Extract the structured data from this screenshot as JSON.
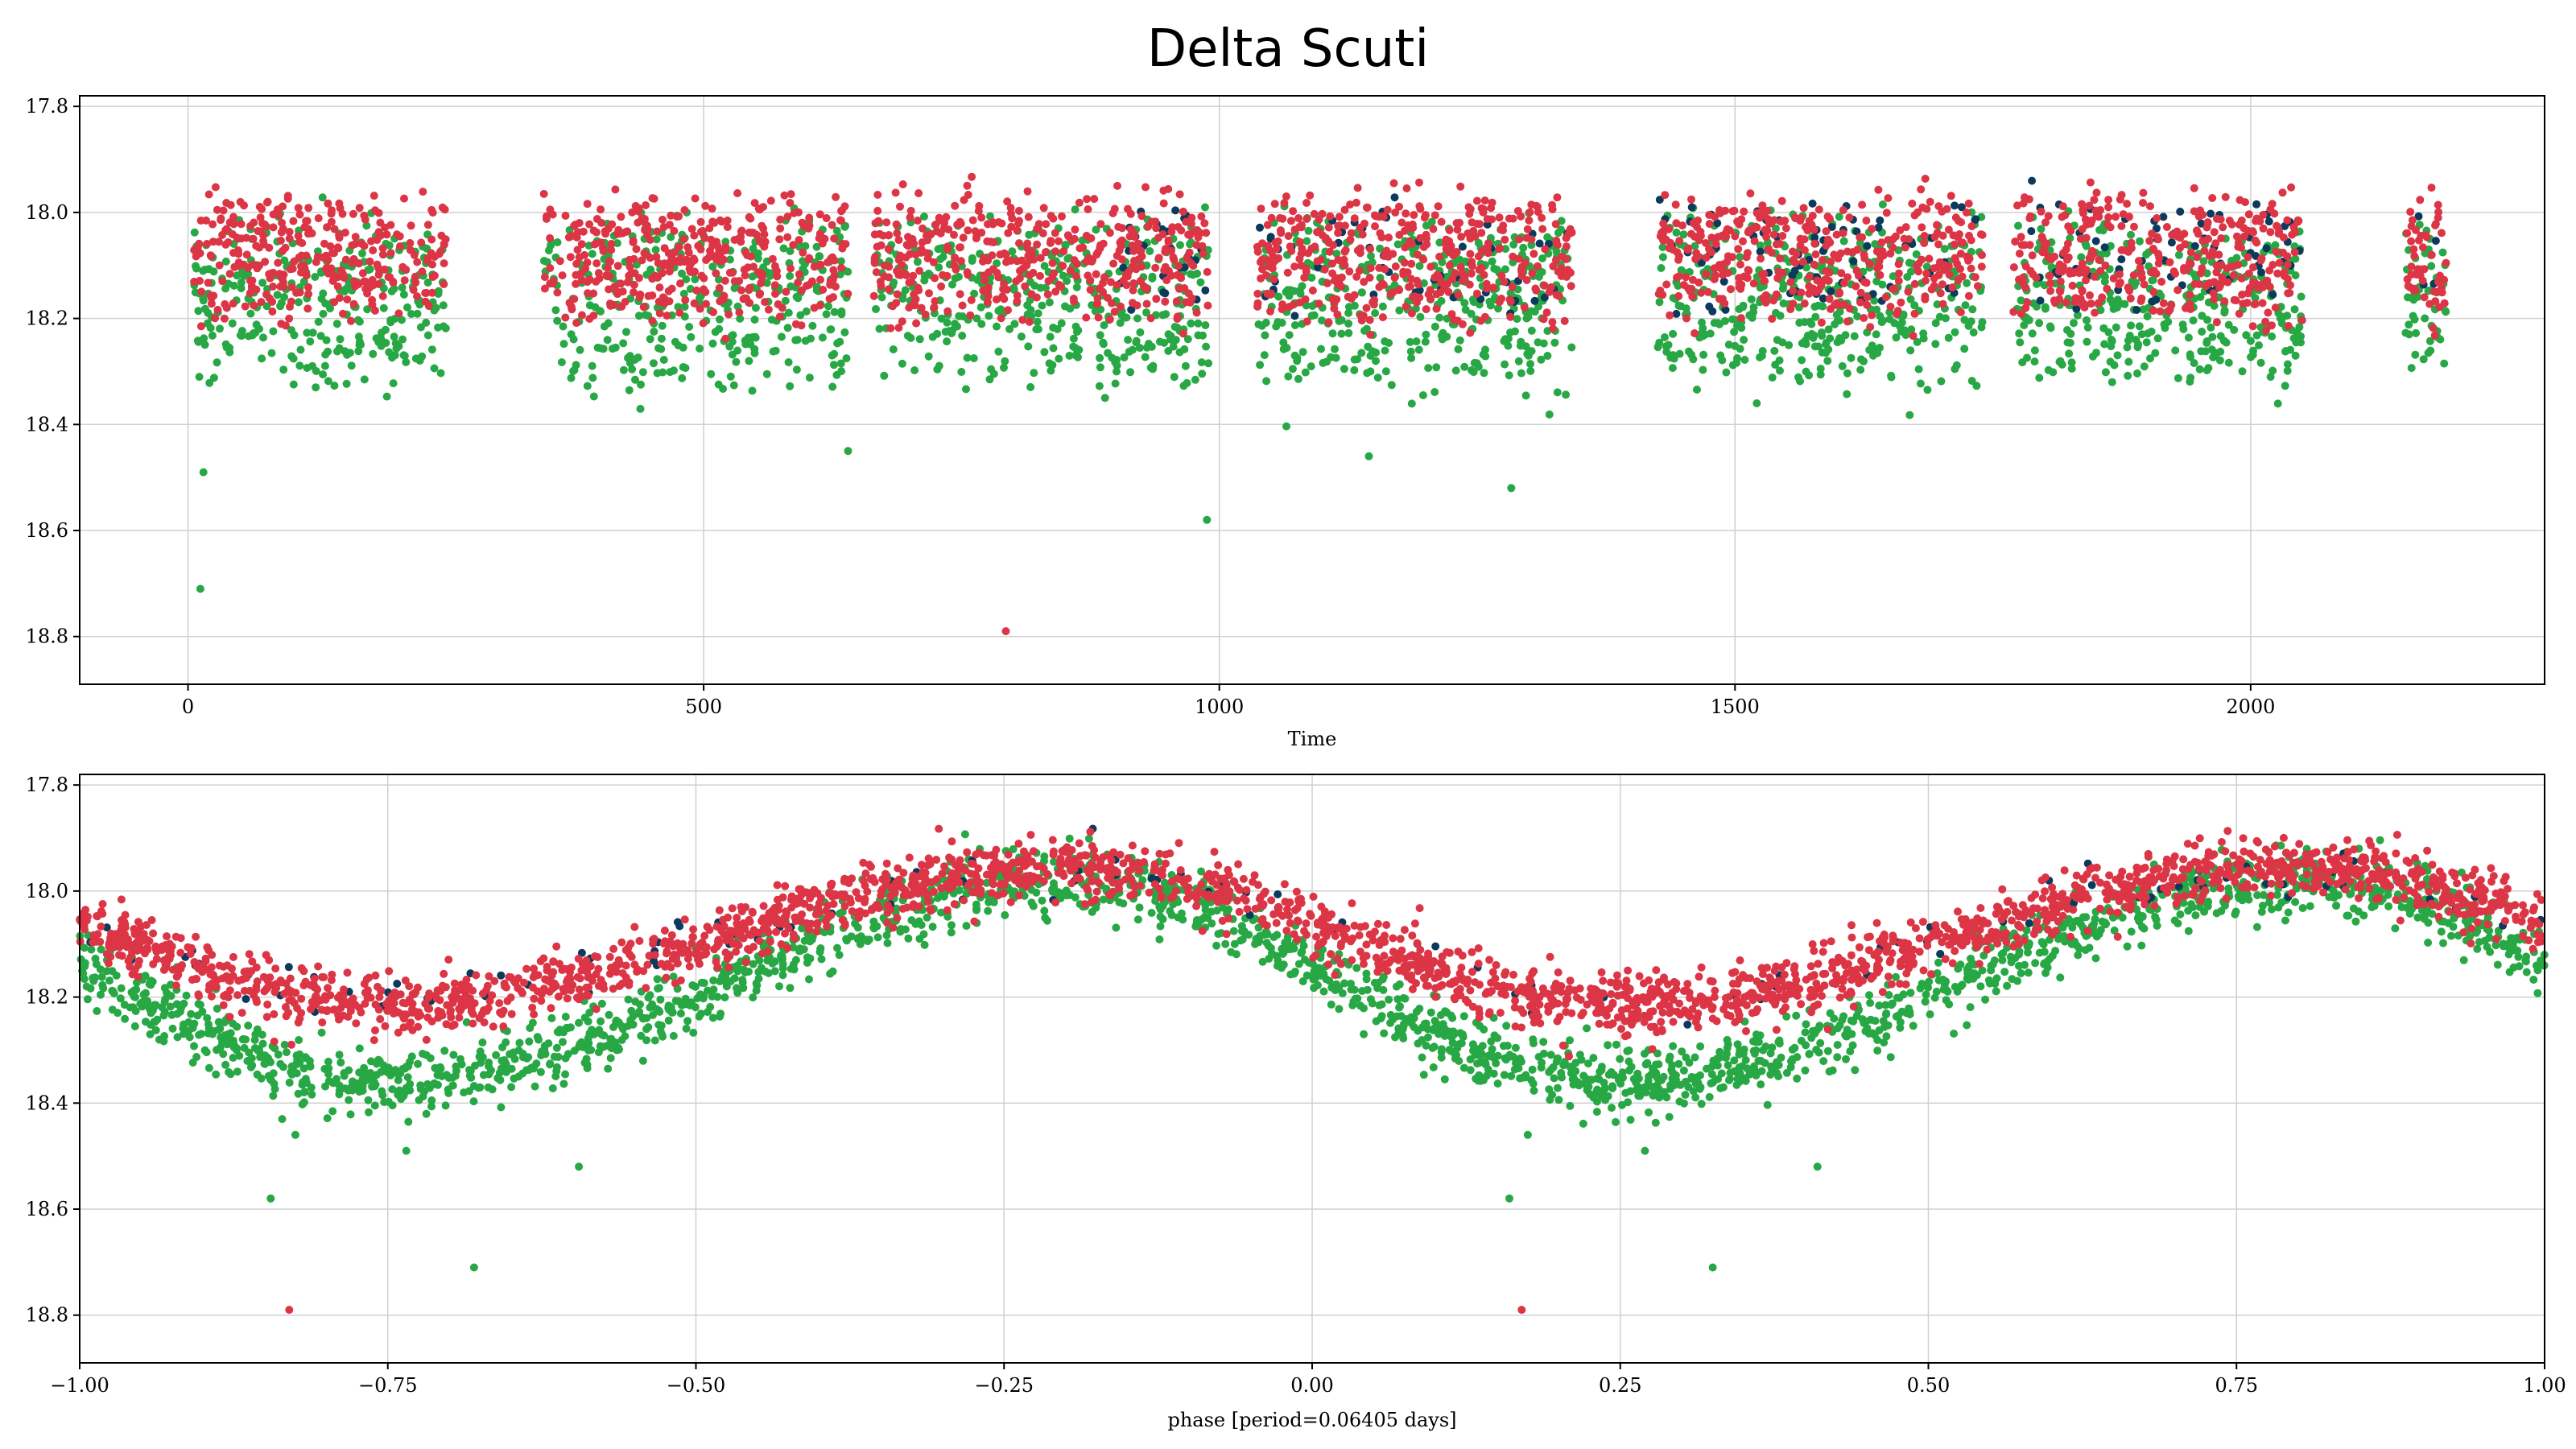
{
  "figure_title": "Delta Scuti",
  "chart_data": [
    {
      "type": "scatter",
      "name": "time-series",
      "xlabel": "Time",
      "ylabel": "",
      "xlim": [
        -105,
        2285
      ],
      "ylim": [
        18.89,
        17.78
      ],
      "y_inverted": true,
      "xticks": [
        0,
        500,
        1000,
        1500,
        2000
      ],
      "xtick_labels": [
        "0",
        "500",
        "1000",
        "1500",
        "2000"
      ],
      "yticks": [
        17.8,
        18.0,
        18.2,
        18.4,
        18.6,
        18.8
      ],
      "ytick_labels": [
        "17.8",
        "18.0",
        "18.2",
        "18.4",
        "18.6",
        "18.8"
      ],
      "grid": true,
      "legend": "none",
      "observing_seasons": [
        [
          5,
          250
        ],
        [
          345,
          640
        ],
        [
          665,
          990
        ],
        [
          1035,
          1345
        ],
        [
          1425,
          1740
        ],
        [
          1770,
          2050
        ],
        [
          2150,
          2190
        ]
      ],
      "outliers": [
        {
          "color": "green",
          "x": 15,
          "y": 18.49
        },
        {
          "color": "green",
          "x": 12,
          "y": 18.71
        },
        {
          "color": "red",
          "x": 793,
          "y": 18.79
        },
        {
          "color": "green",
          "x": 988,
          "y": 18.58
        },
        {
          "color": "green",
          "x": 1283,
          "y": 18.52
        },
        {
          "color": "green",
          "x": 640,
          "y": 18.45
        },
        {
          "color": "green",
          "x": 1145,
          "y": 18.46
        }
      ]
    },
    {
      "type": "scatter",
      "name": "phase-folded",
      "xlabel": "phase [period=0.06405 days]",
      "ylabel": "",
      "xlim": [
        -1.0,
        1.0
      ],
      "ylim": [
        18.89,
        17.78
      ],
      "y_inverted": true,
      "xticks": [
        -1.0,
        -0.75,
        -0.5,
        -0.25,
        0.0,
        0.25,
        0.5,
        0.75,
        1.0
      ],
      "xtick_labels": [
        "−1.00",
        "−0.75",
        "−0.50",
        "−0.25",
        "0.00",
        "0.25",
        "0.50",
        "0.75",
        "1.00"
      ],
      "yticks": [
        17.8,
        18.0,
        18.2,
        18.4,
        18.6,
        18.8
      ],
      "ytick_labels": [
        "17.8",
        "18.0",
        "18.2",
        "18.4",
        "18.6",
        "18.8"
      ],
      "grid": true,
      "legend": "none",
      "period_days": 0.06405,
      "light_curve": {
        "brightest_phase": -0.2,
        "series_mean_mag": {
          "red": 18.085,
          "green": 18.17,
          "navy": 18.08
        },
        "series_amplitude_mag": {
          "red": 0.13,
          "green": 0.19,
          "navy": 0.12
        }
      },
      "outliers": [
        {
          "color": "green",
          "x": -0.845,
          "y": 18.58
        },
        {
          "color": "green",
          "x": -0.825,
          "y": 18.46
        },
        {
          "color": "red",
          "x": -0.83,
          "y": 18.79
        },
        {
          "color": "green",
          "x": -0.68,
          "y": 18.71
        },
        {
          "color": "green",
          "x": -0.735,
          "y": 18.49
        },
        {
          "color": "green",
          "x": -0.595,
          "y": 18.52
        },
        {
          "color": "green",
          "x": 0.16,
          "y": 18.58
        },
        {
          "color": "green",
          "x": 0.175,
          "y": 18.46
        },
        {
          "color": "red",
          "x": 0.17,
          "y": 18.79
        },
        {
          "color": "green",
          "x": 0.325,
          "y": 18.71
        },
        {
          "color": "green",
          "x": 0.27,
          "y": 18.49
        },
        {
          "color": "green",
          "x": 0.41,
          "y": 18.52
        }
      ]
    }
  ],
  "series_colors": {
    "red": "#dc3545",
    "green": "#28a745",
    "navy": "#0b3a5c"
  }
}
